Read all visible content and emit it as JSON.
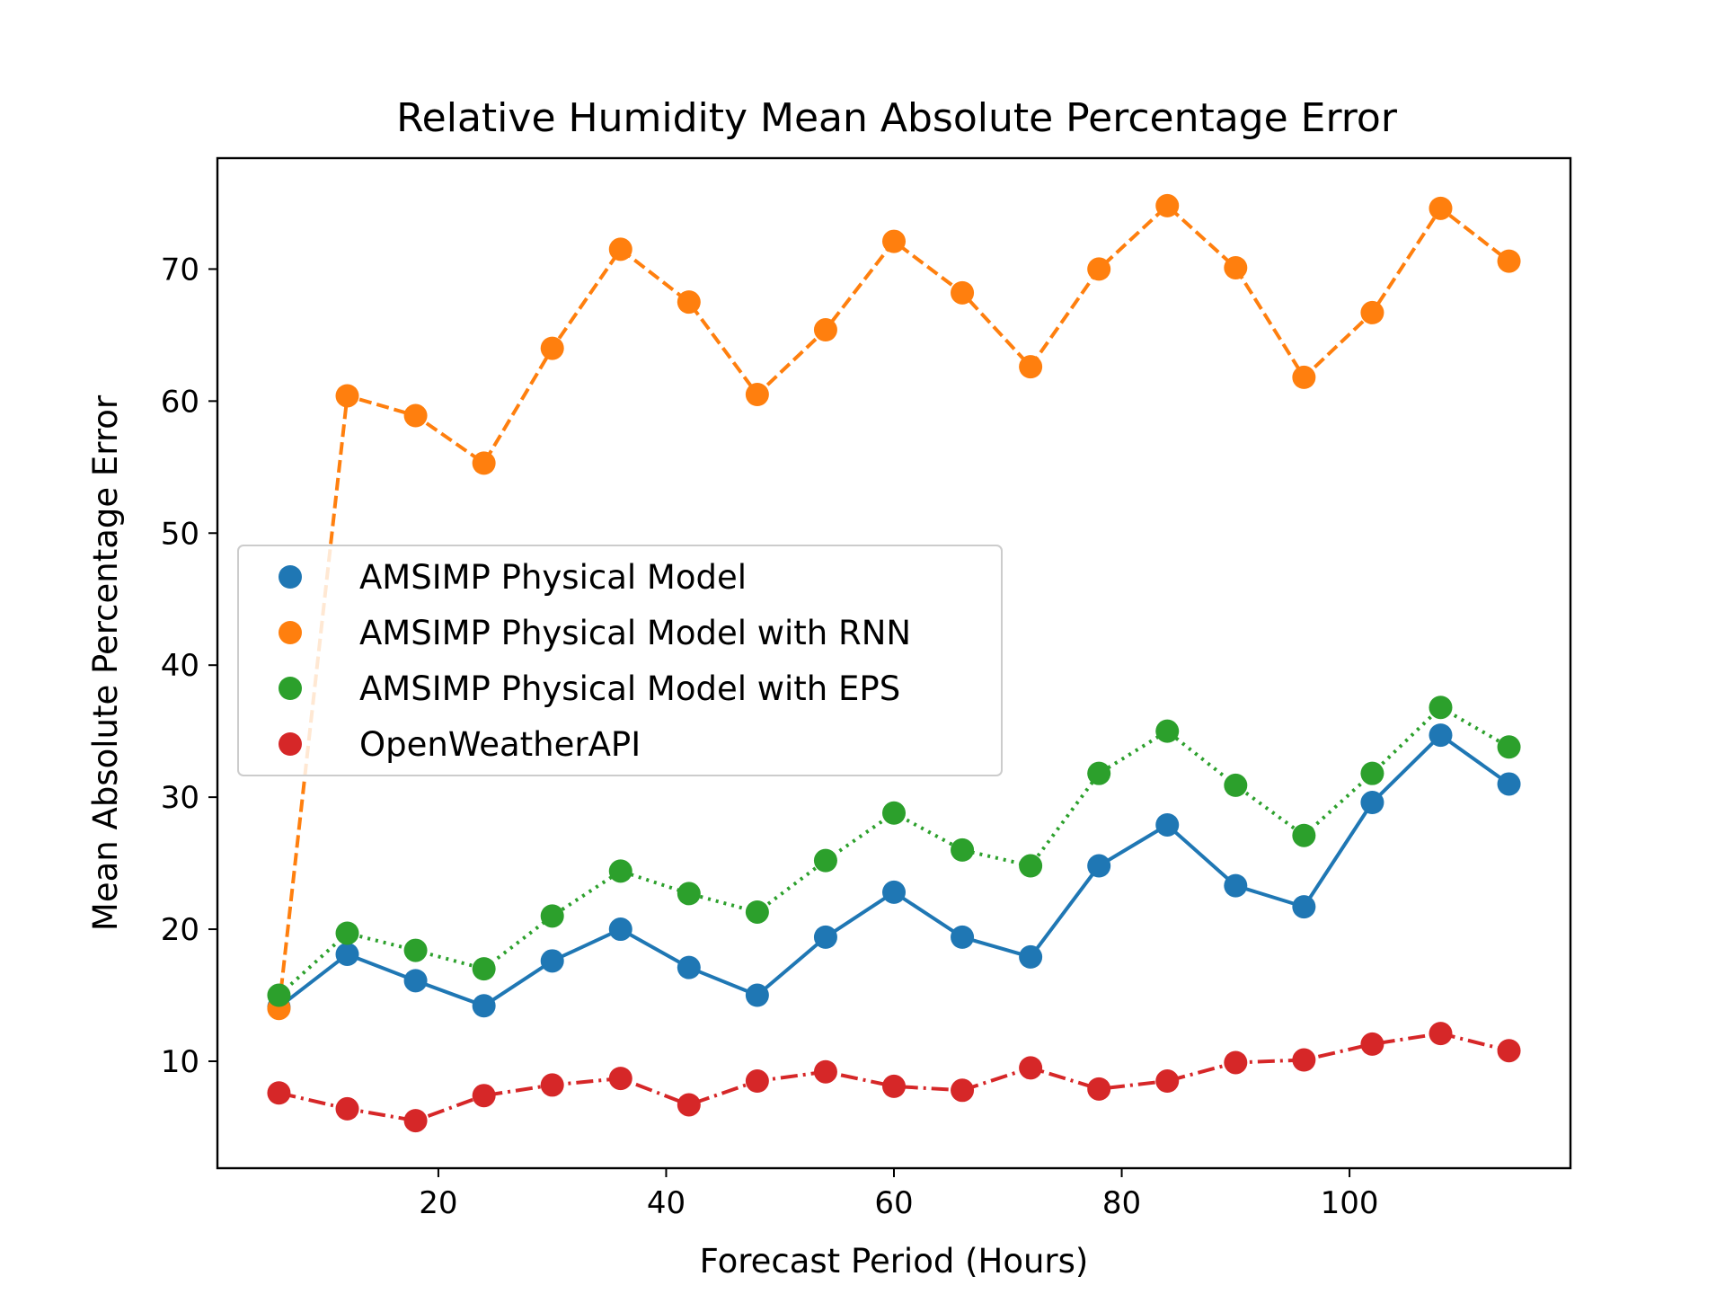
{
  "chart_data": {
    "type": "line",
    "title": "Relative Humidity Mean Absolute Percentage Error",
    "xlabel": "Forecast Period (Hours)",
    "ylabel": "Mean Absolute Percentage Error",
    "xlim": [
      0.6,
      119.4
    ],
    "ylim": [
      1.9,
      78.4
    ],
    "xticks": [
      20,
      40,
      60,
      80,
      100
    ],
    "yticks": [
      10,
      20,
      30,
      40,
      50,
      60,
      70
    ],
    "grid": false,
    "legend_position": "center-left",
    "x": [
      6,
      12,
      18,
      24,
      30,
      36,
      42,
      48,
      54,
      60,
      66,
      72,
      78,
      84,
      90,
      96,
      102,
      108,
      114
    ],
    "series": [
      {
        "name": "AMSIMP Physical Model",
        "color": "#1f77b4",
        "dash": "solid",
        "values": [
          14.1,
          18.1,
          16.1,
          14.2,
          17.6,
          20.0,
          17.1,
          15.0,
          19.4,
          22.8,
          19.4,
          17.9,
          24.8,
          27.9,
          23.3,
          21.7,
          29.6,
          34.7,
          31.0
        ]
      },
      {
        "name": "AMSIMP Physical Model with RNN",
        "color": "#ff7f0e",
        "dash": "dashed",
        "values": [
          14.0,
          60.4,
          58.9,
          55.3,
          64.0,
          71.5,
          67.5,
          60.5,
          65.4,
          72.1,
          68.2,
          62.6,
          70.0,
          74.8,
          70.1,
          61.8,
          66.7,
          74.6,
          70.6
        ]
      },
      {
        "name": "AMSIMP Physical Model with EPS",
        "color": "#2ca02c",
        "dash": "dotted",
        "values": [
          15.0,
          19.7,
          18.4,
          17.0,
          21.0,
          24.4,
          22.7,
          21.3,
          25.2,
          28.8,
          26.0,
          24.8,
          31.8,
          35.0,
          30.9,
          27.1,
          31.8,
          36.8,
          33.8
        ]
      },
      {
        "name": "OpenWeatherAPI",
        "color": "#d62728",
        "dash": "dashdot",
        "values": [
          7.6,
          6.4,
          5.5,
          7.4,
          8.2,
          8.7,
          6.7,
          8.5,
          9.2,
          8.1,
          7.8,
          9.5,
          7.9,
          8.5,
          9.9,
          10.1,
          11.3,
          12.1,
          10.8
        ]
      }
    ]
  }
}
